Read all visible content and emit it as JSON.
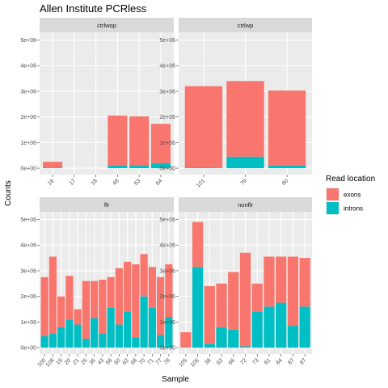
{
  "chart_data": {
    "type": "bar",
    "stacked": true,
    "title": "Allen Institute PCRless",
    "xlabel": "Sample",
    "ylabel": "Counts",
    "ylim": [
      0,
      5000000
    ],
    "yticks": [
      0,
      1000000,
      2000000,
      3000000,
      4000000,
      5000000
    ],
    "ytick_labels": [
      "0e+00",
      "1e+06",
      "2e+06",
      "3e+06",
      "4e+06",
      "5e+06"
    ],
    "grid": true,
    "legend": {
      "title": "Read location",
      "position": "right",
      "entries": [
        {
          "name": "exons",
          "color": "#F8766D"
        },
        {
          "name": "introns",
          "color": "#00BFC4"
        }
      ]
    },
    "panels": [
      {
        "name": "ctrlwop",
        "categories": [
          "16",
          "17",
          "18",
          "48",
          "63",
          "64"
        ],
        "series": [
          {
            "name": "introns",
            "values": [
              20000,
              0,
              0,
              100000,
              120000,
              200000
            ]
          },
          {
            "name": "exons",
            "values": [
              230000,
              0,
              0,
              1950000,
              1900000,
              1530000
            ]
          }
        ]
      },
      {
        "name": "ctrlwp",
        "categories": [
          "101",
          "79",
          "80"
        ],
        "series": [
          {
            "name": "introns",
            "values": [
              30000,
              450000,
              100000
            ]
          },
          {
            "name": "exons",
            "values": [
              3170000,
              2950000,
              2930000
            ]
          }
        ]
      },
      {
        "name": "flr",
        "categories": [
          "100",
          "108",
          "19",
          "20",
          "21",
          "25",
          "35",
          "43",
          "58",
          "60",
          "62",
          "68",
          "70",
          "71",
          "77",
          "78"
        ],
        "series": [
          {
            "name": "introns",
            "values": [
              450000,
              550000,
              800000,
              1100000,
              900000,
              350000,
              1150000,
              550000,
              1550000,
              900000,
              1400000,
              400000,
              2000000,
              1550000,
              500000,
              1200000
            ]
          },
          {
            "name": "exons",
            "values": [
              2300000,
              3000000,
              1200000,
              1700000,
              600000,
              2250000,
              1450000,
              2100000,
              1200000,
              2200000,
              1950000,
              2850000,
              1650000,
              1600000,
              2250000,
              2050000
            ]
          }
        ]
      },
      {
        "name": "nonflr",
        "categories": [
          "105",
          "106",
          "38",
          "62",
          "66",
          "72",
          "73",
          "81",
          "84",
          "87",
          "97"
        ],
        "series": [
          {
            "name": "introns",
            "values": [
              20000,
              3150000,
              150000,
              800000,
              700000,
              50000,
              1400000,
              1600000,
              1750000,
              850000,
              1600000
            ]
          },
          {
            "name": "exons",
            "values": [
              580000,
              1750000,
              2250000,
              1700000,
              2250000,
              3650000,
              1100000,
              1950000,
              1800000,
              2700000,
              1900000
            ]
          }
        ]
      }
    ]
  }
}
